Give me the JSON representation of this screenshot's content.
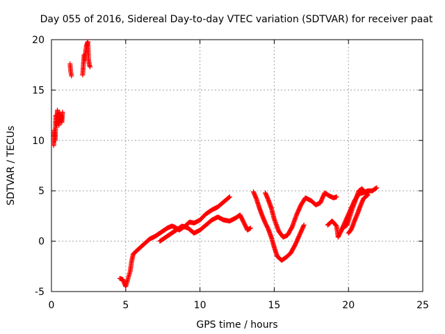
{
  "chart_data": {
    "type": "scatter",
    "title": "Day 055 of 2016, Sidereal Day-to-day VTEC variation (SDTVAR) for receiver paat",
    "xlabel": "GPS time / hours",
    "ylabel": "SDTVAR / TECUs",
    "xlim": [
      0,
      25
    ],
    "ylim": [
      -5,
      20
    ],
    "xticks": [
      0,
      5,
      10,
      15,
      20,
      25
    ],
    "yticks": [
      -5,
      0,
      5,
      10,
      15,
      20
    ],
    "xtick_labels": [
      "0",
      "5",
      "10",
      "15",
      "20",
      "25"
    ],
    "ytick_labels": [
      "-5",
      "0",
      "5",
      "10",
      "15",
      "20"
    ],
    "grid": true,
    "marker": "+",
    "color": "#ff0000",
    "segments": [
      [
        [
          0.15,
          9.5
        ],
        [
          0.2,
          11.0
        ],
        [
          0.25,
          10.0
        ],
        [
          0.3,
          12.5
        ],
        [
          0.35,
          11.5
        ],
        [
          0.4,
          13.0
        ],
        [
          0.45,
          12.0
        ],
        [
          0.5,
          11.5
        ],
        [
          0.55,
          12.8
        ],
        [
          0.6,
          12.0
        ],
        [
          0.65,
          12.5
        ],
        [
          0.7,
          11.8
        ],
        [
          0.75,
          12.8
        ]
      ],
      [
        [
          1.25,
          17.6
        ],
        [
          1.3,
          16.8
        ],
        [
          1.35,
          16.4
        ]
      ],
      [
        [
          2.1,
          16.5
        ],
        [
          2.15,
          17.5
        ],
        [
          2.2,
          18.5
        ],
        [
          2.25,
          18.0
        ],
        [
          2.3,
          18.8
        ],
        [
          2.35,
          19.3
        ],
        [
          2.4,
          19.6
        ],
        [
          2.45,
          19.8
        ],
        [
          2.5,
          18.0
        ],
        [
          2.55,
          17.5
        ],
        [
          2.6,
          17.3
        ]
      ],
      [
        [
          4.6,
          -3.7
        ],
        [
          4.8,
          -3.8
        ],
        [
          5.0,
          -4.5
        ],
        [
          5.1,
          -4.0
        ],
        [
          5.2,
          -3.5
        ],
        [
          5.3,
          -3.0
        ],
        [
          5.4,
          -2.0
        ],
        [
          5.5,
          -1.3
        ],
        [
          5.7,
          -1.0
        ],
        [
          6.0,
          -0.6
        ],
        [
          6.3,
          -0.2
        ],
        [
          6.6,
          0.2
        ],
        [
          7.0,
          0.5
        ],
        [
          7.4,
          0.9
        ],
        [
          7.8,
          1.3
        ],
        [
          8.1,
          1.5
        ],
        [
          8.3,
          1.4
        ],
        [
          8.6,
          1.1
        ],
        [
          9.0,
          1.5
        ],
        [
          9.3,
          1.9
        ],
        [
          9.6,
          1.8
        ],
        [
          10.0,
          2.1
        ],
        [
          10.4,
          2.7
        ],
        [
          10.8,
          3.1
        ],
        [
          11.2,
          3.4
        ],
        [
          11.6,
          3.9
        ],
        [
          12.0,
          4.4
        ]
      ],
      [
        [
          7.3,
          0.0
        ],
        [
          7.6,
          0.3
        ],
        [
          8.0,
          0.7
        ],
        [
          8.4,
          1.1
        ],
        [
          8.8,
          1.5
        ],
        [
          9.2,
          1.3
        ],
        [
          9.6,
          0.8
        ],
        [
          10.0,
          1.1
        ],
        [
          10.4,
          1.6
        ],
        [
          10.8,
          2.1
        ],
        [
          11.2,
          2.4
        ],
        [
          11.6,
          2.1
        ],
        [
          12.0,
          2.0
        ],
        [
          12.4,
          2.3
        ],
        [
          12.7,
          2.6
        ],
        [
          13.0,
          1.7
        ],
        [
          13.2,
          1.1
        ],
        [
          13.4,
          1.3
        ]
      ],
      [
        [
          13.6,
          4.9
        ],
        [
          13.8,
          4.2
        ],
        [
          14.0,
          3.3
        ],
        [
          14.2,
          2.5
        ],
        [
          14.4,
          1.8
        ],
        [
          14.6,
          1.2
        ],
        [
          14.8,
          0.4
        ],
        [
          15.0,
          -0.6
        ],
        [
          15.2,
          -1.5
        ],
        [
          15.5,
          -1.9
        ],
        [
          15.8,
          -1.6
        ],
        [
          16.1,
          -1.2
        ],
        [
          16.4,
          -0.4
        ],
        [
          16.7,
          0.6
        ],
        [
          17.0,
          1.6
        ]
      ],
      [
        [
          14.4,
          4.8
        ],
        [
          14.6,
          4.1
        ],
        [
          14.8,
          3.3
        ],
        [
          15.0,
          2.2
        ],
        [
          15.3,
          1.0
        ],
        [
          15.6,
          0.4
        ],
        [
          15.9,
          0.6
        ],
        [
          16.2,
          1.4
        ],
        [
          16.5,
          2.6
        ],
        [
          16.8,
          3.6
        ],
        [
          17.1,
          4.3
        ],
        [
          17.5,
          4.0
        ],
        [
          17.8,
          3.6
        ],
        [
          18.1,
          3.8
        ],
        [
          18.4,
          4.8
        ],
        [
          18.7,
          4.5
        ],
        [
          19.0,
          4.3
        ],
        [
          19.2,
          4.4
        ]
      ],
      [
        [
          18.6,
          1.6
        ],
        [
          18.9,
          2.0
        ],
        [
          19.2,
          1.5
        ],
        [
          19.3,
          0.4
        ],
        [
          19.5,
          1.0
        ],
        [
          19.8,
          2.0
        ],
        [
          20.1,
          3.0
        ],
        [
          20.4,
          4.0
        ],
        [
          20.7,
          4.7
        ],
        [
          21.0,
          4.8
        ],
        [
          21.3,
          5.0
        ],
        [
          21.6,
          5.0
        ],
        [
          21.9,
          5.3
        ]
      ],
      [
        [
          19.6,
          1.3
        ],
        [
          19.9,
          1.6
        ],
        [
          20.1,
          2.5
        ],
        [
          20.3,
          3.4
        ],
        [
          20.5,
          4.2
        ],
        [
          20.7,
          5.0
        ],
        [
          20.9,
          5.2
        ],
        [
          21.1,
          4.9
        ],
        [
          21.3,
          4.6
        ],
        [
          21.0,
          4.2
        ],
        [
          20.8,
          3.5
        ],
        [
          20.6,
          2.7
        ],
        [
          20.4,
          2.0
        ],
        [
          20.2,
          1.2
        ],
        [
          20.0,
          0.8
        ]
      ]
    ]
  }
}
